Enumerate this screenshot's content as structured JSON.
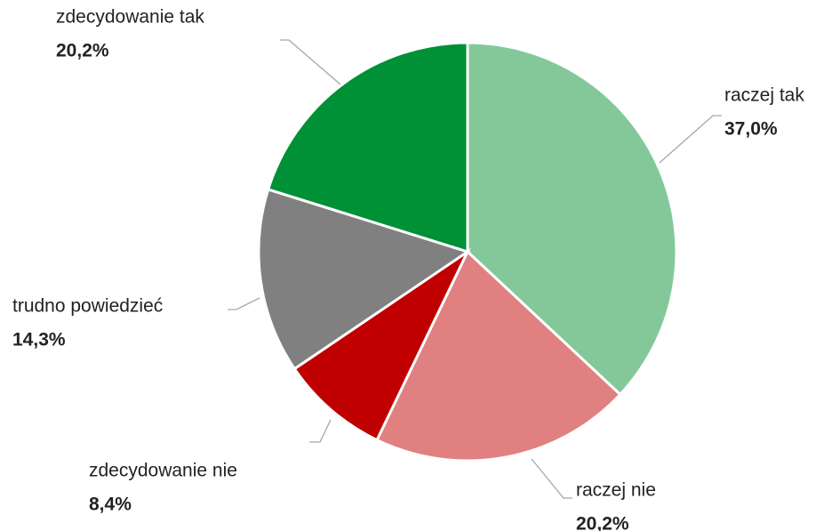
{
  "chart_data": {
    "type": "pie",
    "categories": [
      "raczej tak",
      "raczej nie",
      "zdecydowanie nie",
      "trudno powiedzieć",
      "zdecydowanie tak"
    ],
    "values": [
      37.0,
      20.2,
      8.4,
      14.3,
      20.2
    ],
    "value_labels": [
      "37,0%",
      "20,2%",
      "8,4%",
      "14,3%",
      "20,2%"
    ],
    "colors": [
      "#84c89a",
      "#e08080",
      "#c00000",
      "#808080",
      "#009036"
    ]
  }
}
